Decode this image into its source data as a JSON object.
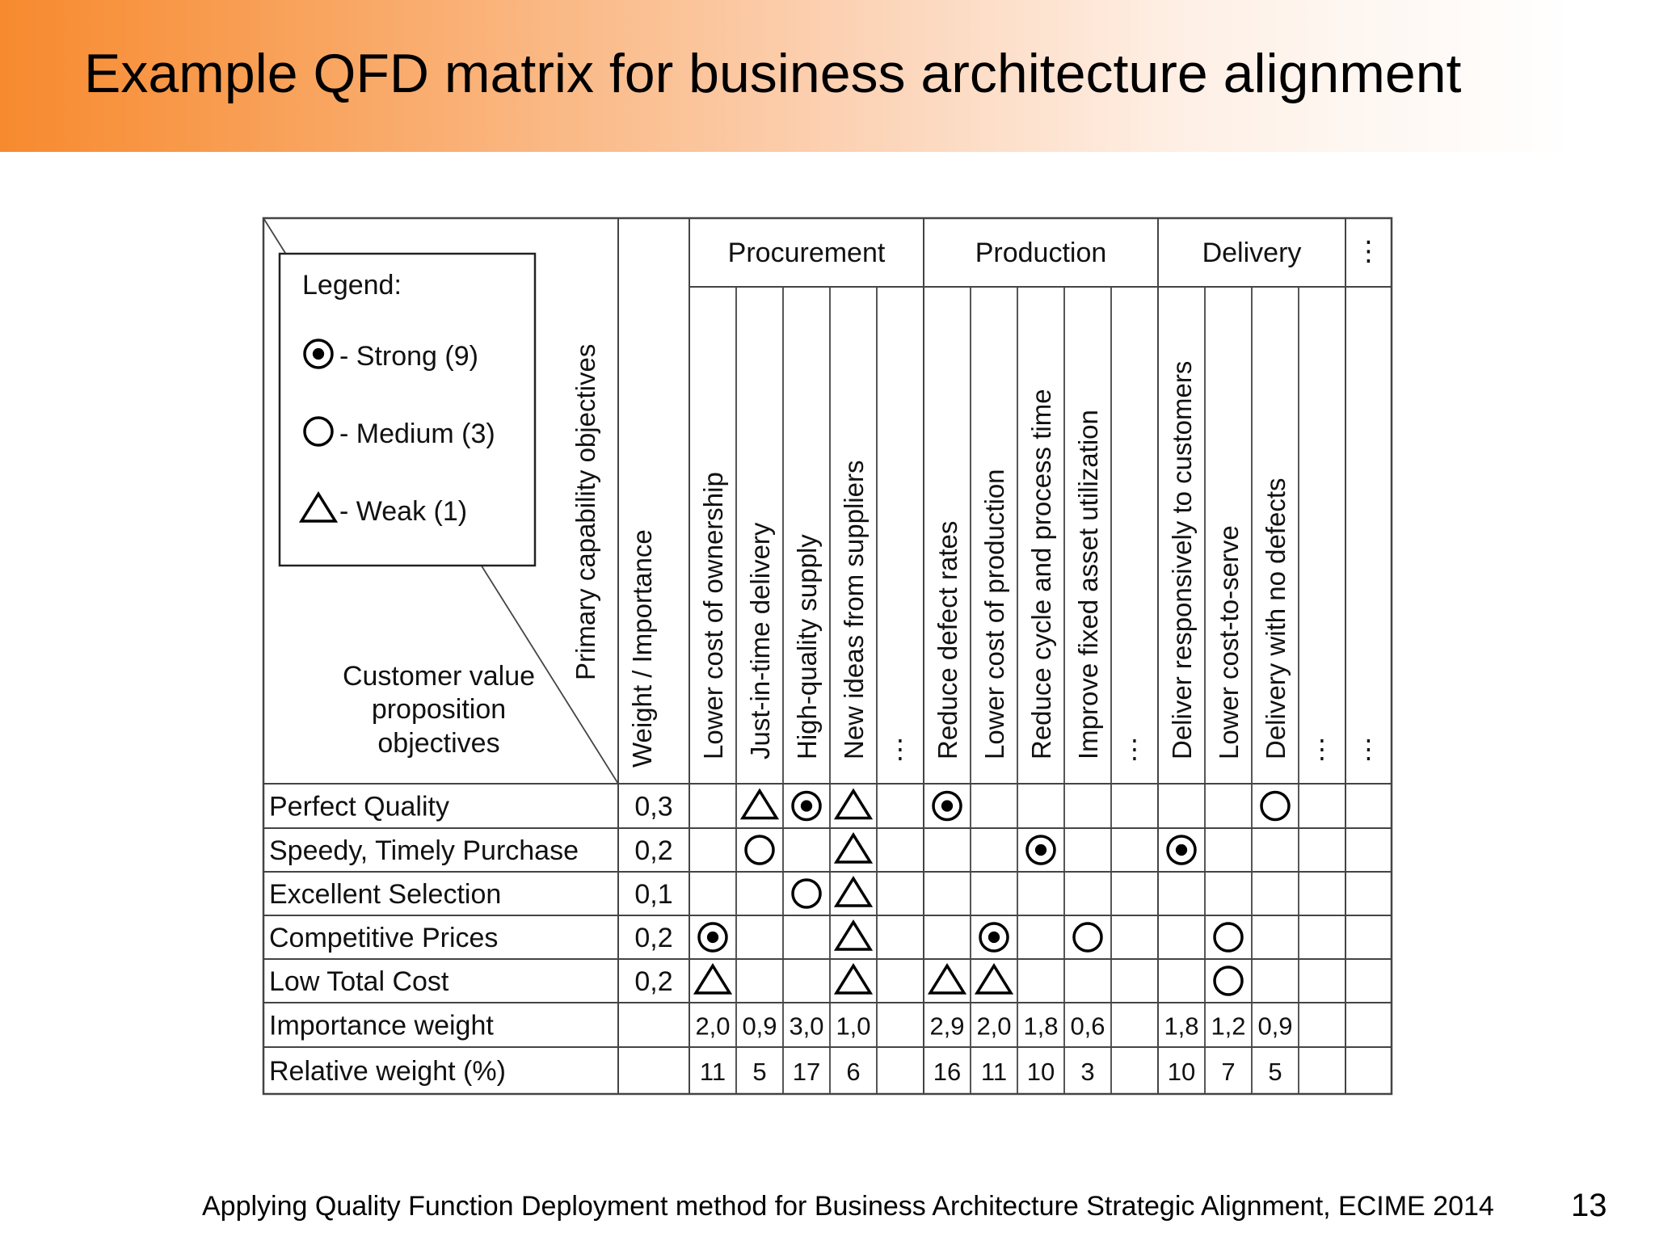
{
  "slide": {
    "title": "Example QFD matrix for business architecture alignment",
    "footer": "Applying Quality Function Deployment method for Business Architecture Strategic Alignment, ECIME 2014",
    "page_number": "13",
    "accent_color": "#f78a2e"
  },
  "matrix": {
    "legend": {
      "title": "Legend:",
      "items": [
        {
          "symbol": "strong",
          "label": "- Strong (9)"
        },
        {
          "symbol": "medium",
          "label": "- Medium (3)"
        },
        {
          "symbol": "weak",
          "label": "- Weak (1)"
        }
      ]
    },
    "corner_lower_label": [
      "Customer value",
      "proposition",
      "objectives"
    ],
    "corner_upper_label": "Primary capability objectives",
    "weight_header": "Weight / Importance",
    "ellipsis": "⋮",
    "groups": [
      {
        "label": "Procurement",
        "columns": [
          "Lower cost of ownership",
          "Just-in-time delivery",
          "High-quality supply",
          "New ideas from suppliers",
          "..."
        ]
      },
      {
        "label": "Production",
        "columns": [
          "Reduce defect rates",
          "Lower cost of production",
          "Reduce cycle and process time",
          "Improve fixed asset utilization",
          "..."
        ]
      },
      {
        "label": "Delivery",
        "columns": [
          "Deliver responsively to customers",
          "Lower cost-to-serve",
          "Delivery with no defects",
          "..."
        ]
      },
      {
        "label": "...",
        "columns": [
          "..."
        ]
      }
    ],
    "rows": [
      {
        "label": "Perfect Quality",
        "weight": "0,3",
        "cells": [
          "",
          "weak",
          "strong",
          "weak",
          "",
          "strong",
          "",
          "",
          "",
          "",
          "",
          "",
          "medium",
          "",
          ""
        ]
      },
      {
        "label": "Speedy, Timely Purchase",
        "weight": "0,2",
        "cells": [
          "",
          "medium",
          "",
          "weak",
          "",
          "",
          "",
          "strong",
          "",
          "",
          "strong",
          "",
          "",
          "",
          ""
        ]
      },
      {
        "label": "Excellent Selection",
        "weight": "0,1",
        "cells": [
          "",
          "",
          "medium",
          "weak",
          "",
          "",
          "",
          "",
          "",
          "",
          "",
          "",
          "",
          "",
          ""
        ]
      },
      {
        "label": "Competitive Prices",
        "weight": "0,2",
        "cells": [
          "strong",
          "",
          "",
          "weak",
          "",
          "",
          "strong",
          "",
          "medium",
          "",
          "",
          "medium",
          "",
          "",
          ""
        ]
      },
      {
        "label": "Low Total Cost",
        "weight": "0,2",
        "cells": [
          "weak",
          "",
          "",
          "weak",
          "",
          "weak",
          "weak",
          "",
          "",
          "",
          "",
          "medium",
          "",
          "",
          ""
        ]
      }
    ],
    "summary_rows": [
      {
        "label": "Importance weight",
        "values": [
          "2,0",
          "0,9",
          "3,0",
          "1,0",
          "",
          "2,9",
          "2,0",
          "1,8",
          "0,6",
          "",
          "1,8",
          "1,2",
          "0,9",
          "",
          ""
        ]
      },
      {
        "label": "Relative weight (%)",
        "values": [
          "11",
          "5",
          "17",
          "6",
          "",
          "16",
          "11",
          "10",
          "3",
          "",
          "10",
          "7",
          "5",
          "",
          ""
        ]
      }
    ]
  }
}
